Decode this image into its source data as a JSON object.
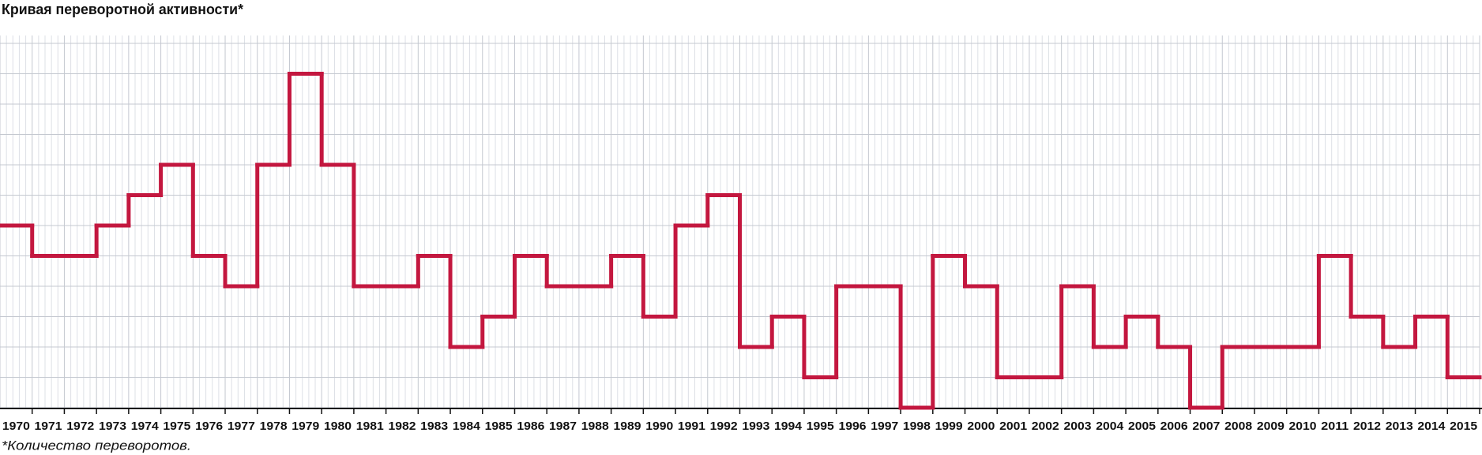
{
  "chart_data": {
    "type": "step",
    "title": "Кривая переворотной активности*",
    "footnote": "*Количество переворотов.",
    "categories": [
      "1970",
      "1971",
      "1972",
      "1973",
      "1974",
      "1975",
      "1976",
      "1977",
      "1978",
      "1979",
      "1980",
      "1981",
      "1982",
      "1983",
      "1984",
      "1985",
      "1986",
      "1987",
      "1988",
      "1989",
      "1990",
      "1991",
      "1992",
      "1993",
      "1994",
      "1995",
      "1996",
      "1997",
      "1998",
      "1999",
      "2000",
      "2001",
      "2002",
      "2003",
      "2004",
      "2005",
      "2006",
      "2007",
      "2008",
      "2009",
      "2010",
      "2011",
      "2012",
      "2013",
      "2014",
      "2015"
    ],
    "values": [
      6,
      5,
      5,
      6,
      7,
      8,
      5,
      4,
      8,
      11,
      8,
      4,
      4,
      5,
      2,
      3,
      5,
      4,
      4,
      5,
      3,
      6,
      7,
      2,
      3,
      1,
      4,
      4,
      0,
      5,
      4,
      1,
      1,
      4,
      2,
      3,
      2,
      0,
      2,
      2,
      2,
      5,
      3,
      2,
      3,
      1
    ],
    "color": "#c3173f",
    "ylim": [
      0,
      12
    ],
    "yticks": [
      0,
      1,
      2,
      3,
      4,
      5,
      6,
      7,
      8,
      9,
      10,
      11,
      12
    ],
    "grid": true
  }
}
